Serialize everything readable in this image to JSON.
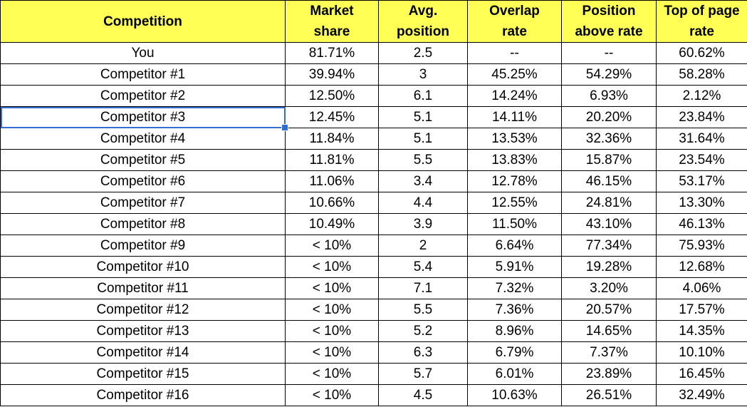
{
  "headers": {
    "competition": "Competition",
    "market_share": "Market\nshare",
    "avg_position": "Avg.\nposition",
    "overlap_rate": "Overlap\nrate",
    "position_above_rate": "Position\nabove rate",
    "top_of_page_rate": "Top of page\nrate"
  },
  "rows": [
    {
      "name": "You",
      "share": "81.71%",
      "avg": "2.5",
      "overlap": "--",
      "above": "--",
      "top": "60.62%"
    },
    {
      "name": "Competitor #1",
      "share": "39.94%",
      "avg": "3",
      "overlap": "45.25%",
      "above": "54.29%",
      "top": "58.28%"
    },
    {
      "name": "Competitor #2",
      "share": "12.50%",
      "avg": "6.1",
      "overlap": "14.24%",
      "above": "6.93%",
      "top": "2.12%"
    },
    {
      "name": "Competitor #3",
      "share": "12.45%",
      "avg": "5.1",
      "overlap": "14.11%",
      "above": "20.20%",
      "top": "23.84%"
    },
    {
      "name": "Competitor #4",
      "share": "11.84%",
      "avg": "5.1",
      "overlap": "13.53%",
      "above": "32.36%",
      "top": "31.64%"
    },
    {
      "name": "Competitor #5",
      "share": "11.81%",
      "avg": "5.5",
      "overlap": "13.83%",
      "above": "15.87%",
      "top": "23.54%"
    },
    {
      "name": "Competitor #6",
      "share": "11.06%",
      "avg": "3.4",
      "overlap": "12.78%",
      "above": "46.15%",
      "top": "53.17%"
    },
    {
      "name": "Competitor #7",
      "share": "10.66%",
      "avg": "4.4",
      "overlap": "12.55%",
      "above": "24.81%",
      "top": "13.30%"
    },
    {
      "name": "Competitor #8",
      "share": "10.49%",
      "avg": "3.9",
      "overlap": "11.50%",
      "above": "43.10%",
      "top": "46.13%"
    },
    {
      "name": "Competitor #9",
      "share": "< 10%",
      "avg": "2",
      "overlap": "6.64%",
      "above": "77.34%",
      "top": "75.93%"
    },
    {
      "name": "Competitor #10",
      "share": "< 10%",
      "avg": "5.4",
      "overlap": "5.91%",
      "above": "19.28%",
      "top": "12.68%"
    },
    {
      "name": "Competitor #11",
      "share": "< 10%",
      "avg": "7.1",
      "overlap": "7.32%",
      "above": "3.20%",
      "top": "4.06%"
    },
    {
      "name": "Competitor #12",
      "share": "< 10%",
      "avg": "5.5",
      "overlap": "7.36%",
      "above": "20.57%",
      "top": "17.57%"
    },
    {
      "name": "Competitor #13",
      "share": "< 10%",
      "avg": "5.2",
      "overlap": "8.96%",
      "above": "14.65%",
      "top": "14.35%"
    },
    {
      "name": "Competitor #14",
      "share": "< 10%",
      "avg": "6.3",
      "overlap": "6.79%",
      "above": "7.37%",
      "top": "10.10%"
    },
    {
      "name": "Competitor #15",
      "share": "< 10%",
      "avg": "5.7",
      "overlap": "6.01%",
      "above": "23.89%",
      "top": "16.45%"
    },
    {
      "name": "Competitor #16",
      "share": "< 10%",
      "avg": "4.5",
      "overlap": "10.63%",
      "above": "26.51%",
      "top": "32.49%"
    }
  ],
  "selected_row": 3,
  "colors": {
    "header_bg": "#ffff55",
    "selection": "#2f6fd0",
    "grid": "#000000"
  }
}
